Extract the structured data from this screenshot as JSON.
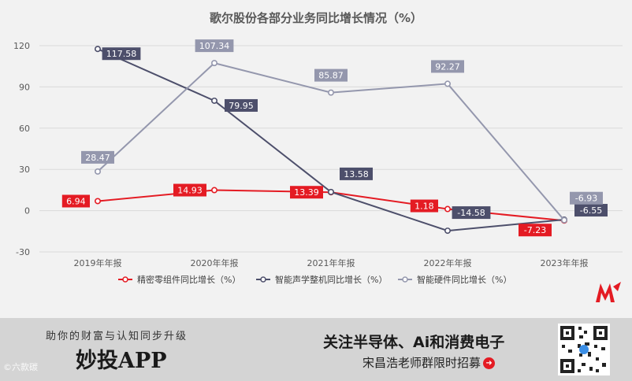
{
  "chart_data": {
    "type": "line",
    "title": "歌尔股份各部分业务同比增长情况（%）",
    "categories": [
      "2019年年报",
      "2020年年报",
      "2021年年报",
      "2022年年报",
      "2023年年报"
    ],
    "yticks": [
      "120",
      "90",
      "60",
      "30",
      "0",
      "-30"
    ],
    "ylim": [
      -30,
      120
    ],
    "legend_position": "bottom",
    "series": [
      {
        "name": "精密零组件同比增长（%）",
        "color": "#e41b23",
        "values": [
          6.94,
          14.93,
          13.39,
          1.18,
          -7.23
        ],
        "labels": [
          "6.94",
          "14.93",
          "13.39",
          "1.18",
          "-7.23"
        ]
      },
      {
        "name": "智能声学整机同比增长（%）",
        "color": "#4d4f6b",
        "values": [
          117.58,
          79.95,
          13.58,
          -14.58,
          -6.55
        ],
        "labels": [
          "117.58",
          "79.95",
          "13.58",
          "-14.58",
          "-6.55"
        ]
      },
      {
        "name": "智能硬件同比增长（%）",
        "color": "#9497ad",
        "values": [
          28.47,
          107.34,
          85.87,
          92.27,
          -6.93
        ],
        "labels": [
          "28.47",
          "107.34",
          "85.87",
          "92.27",
          "-6.93"
        ]
      }
    ]
  },
  "banner": {
    "slogan": "助你的财富与认知同步升级",
    "app_name": "妙投APP",
    "follow": "关注半导体、Ai和消费电子",
    "recruit": "宋昌浩老师群限时招募",
    "arrow_icon": "arrow-right-icon",
    "watermark": "©六款碳",
    "qr_icon": "qr-code-icon",
    "logo_icon": "brand-logo-icon"
  }
}
